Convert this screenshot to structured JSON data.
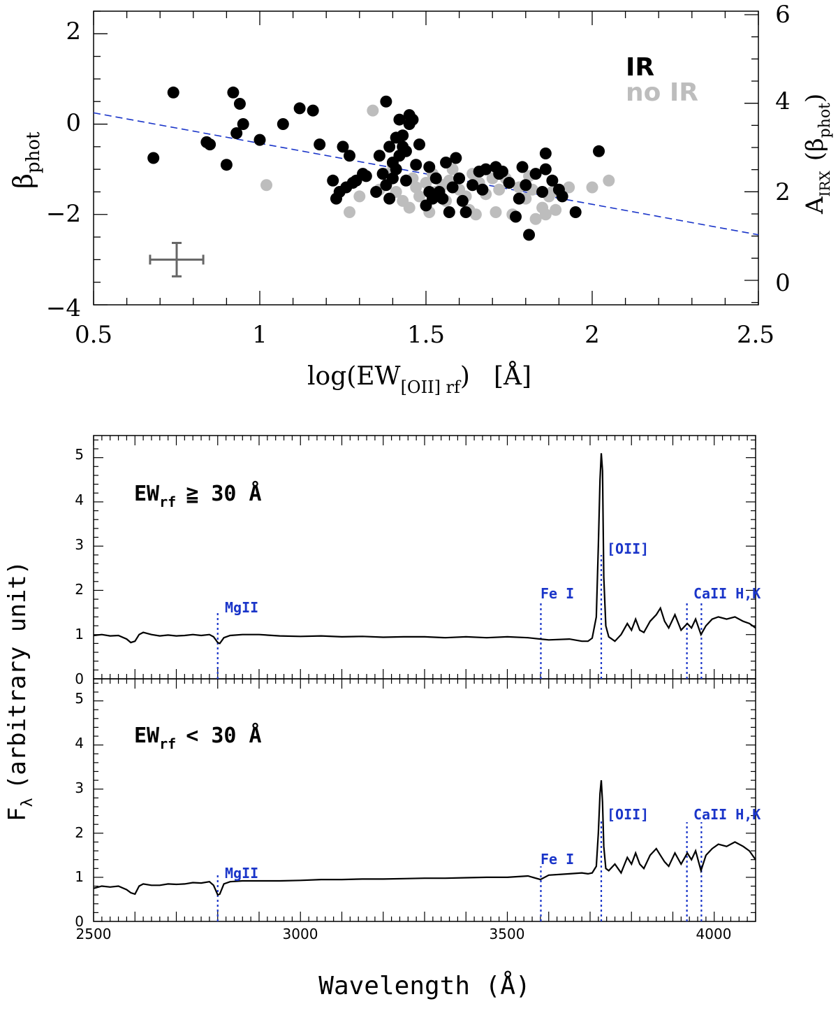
{
  "chart_data": [
    {
      "type": "scatter",
      "xlabel": "log(EW",
      "xlabel_sub": "[OII] rf",
      "xlabel_unit": "[Å]",
      "ylabel": "β",
      "ylabel_sub": "phot",
      "y2label": "A",
      "y2label_sub": "IRX",
      "y2label_paren": "(β",
      "y2label_paren_sub": "phot",
      "xlim": [
        0.5,
        2.5
      ],
      "ylim": [
        -4,
        2.5
      ],
      "xticks": [
        "0.5",
        "1",
        "1.5",
        "2",
        "2.5"
      ],
      "yticks": [
        "−4",
        "−2",
        "0",
        "2"
      ],
      "y2ticks": [
        "0",
        "2",
        "4",
        "6"
      ],
      "legend": [
        {
          "label": "IR",
          "color": "#000000"
        },
        {
          "label": "no IR",
          "color": "#bdbdbd"
        }
      ],
      "fit_line": {
        "x": [
          0.5,
          2.5
        ],
        "y": [
          0.25,
          -2.45
        ],
        "color": "#1a35c9"
      },
      "error_bar": {
        "x": 0.75,
        "y": -3.0,
        "dx": 0.08,
        "dy": 0.37,
        "color": "#666666"
      },
      "series": [
        {
          "name": "no IR",
          "color": "#bdbdbd",
          "x": [
            1.02,
            1.27,
            1.3,
            1.34,
            1.36,
            1.38,
            1.4,
            1.41,
            1.43,
            1.45,
            1.46,
            1.47,
            1.48,
            1.5,
            1.51,
            1.52,
            1.53,
            1.55,
            1.56,
            1.57,
            1.58,
            1.6,
            1.62,
            1.63,
            1.64,
            1.65,
            1.66,
            1.68,
            1.7,
            1.71,
            1.72,
            1.74,
            1.76,
            1.78,
            1.8,
            1.81,
            1.82,
            1.83,
            1.85,
            1.86,
            1.87,
            1.88,
            1.89,
            1.93,
            2.0,
            2.05
          ],
          "y": [
            -1.35,
            -1.95,
            -1.6,
            0.3,
            -1.45,
            -1.1,
            -0.9,
            -1.5,
            -1.7,
            -1.85,
            -1.2,
            -1.4,
            -1.6,
            -1.3,
            -1.95,
            -1.1,
            -1.5,
            -1.35,
            -1.7,
            -1.25,
            -1.0,
            -1.45,
            -1.6,
            -1.9,
            -1.1,
            -2.0,
            -1.3,
            -1.55,
            -1.2,
            -1.95,
            -1.45,
            -1.2,
            -2.0,
            -1.4,
            -1.65,
            -1.15,
            -1.45,
            -2.1,
            -1.85,
            -2.0,
            -1.6,
            -1.5,
            -1.9,
            -1.4,
            -1.4,
            -1.25
          ]
        },
        {
          "name": "IR",
          "color": "#000000",
          "x": [
            0.68,
            0.74,
            0.84,
            0.85,
            0.9,
            0.92,
            0.93,
            0.94,
            0.95,
            1.0,
            1.07,
            1.12,
            1.16,
            1.18,
            1.22,
            1.23,
            1.24,
            1.25,
            1.26,
            1.27,
            1.28,
            1.29,
            1.31,
            1.32,
            1.35,
            1.36,
            1.37,
            1.38,
            1.38,
            1.39,
            1.39,
            1.4,
            1.4,
            1.41,
            1.41,
            1.42,
            1.42,
            1.43,
            1.43,
            1.44,
            1.44,
            1.45,
            1.45,
            1.46,
            1.47,
            1.48,
            1.5,
            1.51,
            1.51,
            1.52,
            1.53,
            1.54,
            1.55,
            1.56,
            1.57,
            1.58,
            1.59,
            1.6,
            1.61,
            1.62,
            1.64,
            1.66,
            1.67,
            1.68,
            1.71,
            1.72,
            1.73,
            1.75,
            1.77,
            1.78,
            1.79,
            1.8,
            1.81,
            1.83,
            1.85,
            1.86,
            1.86,
            1.88,
            1.9,
            1.91,
            1.95,
            2.02
          ],
          "y": [
            -0.75,
            0.7,
            -0.4,
            -0.45,
            -0.9,
            0.7,
            -0.2,
            0.45,
            0.0,
            -0.35,
            0.0,
            0.35,
            0.3,
            -0.45,
            -1.25,
            -1.65,
            -1.5,
            -0.5,
            -1.4,
            -0.7,
            -1.3,
            -1.25,
            -1.1,
            -1.15,
            -1.5,
            -0.7,
            -1.1,
            0.5,
            -1.35,
            -1.65,
            -0.5,
            -1.2,
            -0.85,
            -1.0,
            -0.3,
            -0.7,
            0.1,
            -0.5,
            -0.25,
            -1.25,
            -0.6,
            0.0,
            0.2,
            0.1,
            -0.9,
            -0.45,
            -1.8,
            -1.5,
            -0.95,
            -1.65,
            -1.2,
            -1.5,
            -1.65,
            -0.85,
            -1.95,
            -1.4,
            -0.75,
            -1.2,
            -1.7,
            -1.95,
            -1.35,
            -1.05,
            -1.45,
            -1.0,
            -0.95,
            -1.1,
            -1.05,
            -1.3,
            -2.05,
            -1.65,
            -0.95,
            -1.35,
            -2.45,
            -1.1,
            -1.5,
            -0.65,
            -1.0,
            -1.25,
            -1.45,
            -1.6,
            -1.95,
            -0.6
          ]
        }
      ]
    },
    {
      "type": "line",
      "xlabel": "Wavelength (Å)",
      "ylabel": "F",
      "ylabel_sub": "λ",
      "ylabel_rest": "(arbitrary unit)",
      "xlim": [
        2500,
        4100
      ],
      "xticks": [
        "2500",
        "3000",
        "3500",
        "4000"
      ],
      "panels": [
        {
          "label": "EW",
          "label_sub": "rf",
          "label_rest": "≧ 30 Å",
          "ylim": [
            0,
            5.5
          ],
          "yticks": [
            "0",
            "1",
            "2",
            "3",
            "4",
            "5"
          ],
          "lines": [
            {
              "label": "MgII",
              "x": 2800,
              "ymin": 0,
              "ymax": 1.5
            },
            {
              "label": "Fe I",
              "x": 3581,
              "ymin": 0,
              "ymax": 1.75
            },
            {
              "label": "[OII]",
              "x": 3727,
              "ymin": 0,
              "ymax": 2.8
            },
            {
              "label": "CaII H,K",
              "x": 3934,
              "x2": 3969,
              "ymin": 0,
              "ymax": 1.75
            }
          ],
          "spectrum": {
            "x": [
              2500,
              2520,
              2540,
              2560,
              2580,
              2590,
              2600,
              2610,
              2620,
              2640,
              2660,
              2680,
              2700,
              2720,
              2740,
              2760,
              2780,
              2790,
              2800,
              2805,
              2815,
              2830,
              2860,
              2900,
              2950,
              3000,
              3050,
              3100,
              3150,
              3200,
              3250,
              3300,
              3350,
              3400,
              3450,
              3500,
              3550,
              3580,
              3600,
              3650,
              3680,
              3695,
              3705,
              3715,
              3720,
              3724,
              3727,
              3730,
              3733,
              3738,
              3745,
              3760,
              3775,
              3790,
              3800,
              3810,
              3820,
              3830,
              3845,
              3860,
              3870,
              3880,
              3890,
              3905,
              3920,
              3935,
              3945,
              3955,
              3968,
              3980,
              3995,
              4010,
              4030,
              4050,
              4070,
              4085,
              4100
            ],
            "y": [
              0.98,
              1.0,
              0.97,
              0.98,
              0.9,
              0.82,
              0.85,
              1.0,
              1.05,
              1.0,
              0.97,
              0.99,
              0.97,
              0.98,
              1.0,
              0.98,
              1.0,
              0.95,
              0.82,
              0.8,
              0.93,
              0.98,
              1.0,
              1.0,
              0.97,
              0.96,
              0.97,
              0.95,
              0.96,
              0.94,
              0.95,
              0.95,
              0.93,
              0.95,
              0.93,
              0.95,
              0.93,
              0.9,
              0.88,
              0.9,
              0.85,
              0.85,
              0.92,
              1.4,
              3.0,
              4.5,
              5.1,
              4.7,
              2.3,
              1.2,
              0.95,
              0.85,
              1.0,
              1.25,
              1.1,
              1.35,
              1.1,
              1.05,
              1.3,
              1.45,
              1.6,
              1.3,
              1.15,
              1.45,
              1.1,
              1.25,
              1.15,
              1.35,
              1.0,
              1.2,
              1.35,
              1.4,
              1.35,
              1.4,
              1.3,
              1.25,
              1.15
            ]
          }
        },
        {
          "label": "EW",
          "label_sub": "rf",
          "label_rest": "< 30 Å",
          "ylim": [
            0,
            5.5
          ],
          "yticks": [
            "0",
            "1",
            "2",
            "3",
            "4",
            "5"
          ],
          "lines": [
            {
              "label": "MgII",
              "x": 2800,
              "ymin": 0,
              "ymax": 1.05
            },
            {
              "label": "Fe I",
              "x": 3581,
              "ymin": 0,
              "ymax": 1.25
            },
            {
              "label": "[OII]",
              "x": 3727,
              "ymin": 0,
              "ymax": 2.3
            },
            {
              "label": "CaII H,K",
              "x": 3934,
              "x2": 3969,
              "ymin": 0,
              "ymax": 2.25
            }
          ],
          "spectrum": {
            "x": [
              2500,
              2520,
              2540,
              2560,
              2580,
              2590,
              2600,
              2610,
              2620,
              2640,
              2660,
              2680,
              2700,
              2720,
              2740,
              2760,
              2780,
              2790,
              2800,
              2805,
              2815,
              2830,
              2860,
              2900,
              2950,
              3000,
              3050,
              3100,
              3150,
              3200,
              3250,
              3300,
              3350,
              3400,
              3450,
              3500,
              3550,
              3580,
              3600,
              3650,
              3680,
              3695,
              3705,
              3715,
              3720,
              3724,
              3727,
              3730,
              3733,
              3738,
              3745,
              3760,
              3775,
              3790,
              3800,
              3810,
              3820,
              3830,
              3845,
              3860,
              3870,
              3880,
              3890,
              3905,
              3920,
              3935,
              3945,
              3955,
              3968,
              3980,
              3995,
              4010,
              4030,
              4050,
              4070,
              4085,
              4100
            ],
            "y": [
              0.75,
              0.8,
              0.78,
              0.8,
              0.72,
              0.65,
              0.62,
              0.8,
              0.85,
              0.82,
              0.82,
              0.85,
              0.84,
              0.85,
              0.88,
              0.87,
              0.9,
              0.82,
              0.6,
              0.62,
              0.85,
              0.9,
              0.92,
              0.92,
              0.92,
              0.93,
              0.95,
              0.95,
              0.96,
              0.96,
              0.97,
              0.98,
              0.98,
              0.99,
              1.0,
              1.0,
              1.03,
              0.95,
              1.05,
              1.08,
              1.1,
              1.08,
              1.1,
              1.25,
              2.0,
              2.9,
              3.2,
              2.7,
              1.7,
              1.2,
              1.15,
              1.3,
              1.1,
              1.45,
              1.3,
              1.55,
              1.3,
              1.2,
              1.5,
              1.65,
              1.5,
              1.35,
              1.25,
              1.55,
              1.3,
              1.55,
              1.4,
              1.6,
              1.15,
              1.5,
              1.65,
              1.75,
              1.7,
              1.8,
              1.7,
              1.6,
              1.4
            ]
          }
        }
      ]
    }
  ]
}
